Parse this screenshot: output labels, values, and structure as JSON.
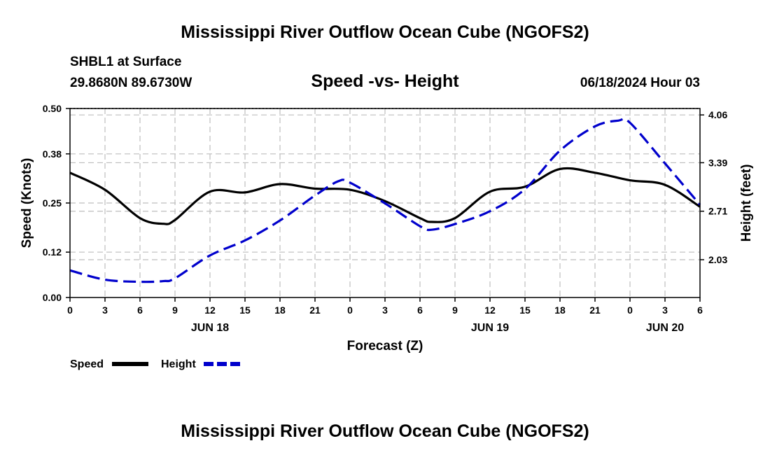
{
  "page": {
    "title": "Mississippi River Outflow Ocean Cube (NGOFS2)",
    "footer_title": "Mississippi River Outflow Ocean Cube (NGOFS2)"
  },
  "chart_data": {
    "type": "line",
    "title": "Speed -vs- Height",
    "station": "SHBL1 at Surface",
    "location": "29.8680N  89.6730W",
    "datetime": "06/18/2024 Hour 03",
    "xlabel": "Forecast (Z)",
    "ylabel": "Speed (Knots)",
    "y2label": "Height (feet)",
    "x_range": [
      0,
      54
    ],
    "x_ticks": [
      0,
      3,
      6,
      9,
      12,
      15,
      18,
      21,
      24,
      27,
      30,
      33,
      36,
      39,
      42,
      45,
      48,
      51,
      54
    ],
    "x_tick_labels": [
      "0",
      "3",
      "6",
      "9",
      "12",
      "15",
      "18",
      "21",
      "0",
      "3",
      "6",
      "9",
      "12",
      "15",
      "18",
      "21",
      "0",
      "3",
      "6"
    ],
    "date_labels": [
      {
        "x": 12,
        "label": "JUN 18"
      },
      {
        "x": 36,
        "label": "JUN 19"
      },
      {
        "x": 51,
        "label": "JUN 20"
      }
    ],
    "ylim": [
      0,
      0.5
    ],
    "y_ticks": [
      0.0,
      0.12,
      0.25,
      0.38,
      0.5
    ],
    "y_tick_labels": [
      "0.00",
      "0.12",
      "0.25",
      "0.38",
      "0.50"
    ],
    "y2lim": [
      1.5,
      4.15
    ],
    "y2_ticks": [
      2.03,
      2.71,
      3.39,
      4.06
    ],
    "y2_tick_labels": [
      "2.03",
      "2.71",
      "3.39",
      "4.06"
    ],
    "grid": true,
    "series": [
      {
        "name": "Speed",
        "axis": "left",
        "color": "#000000",
        "dash": "solid",
        "x": [
          0,
          3,
          6,
          8,
          9,
          12,
          15,
          18,
          21,
          24,
          27,
          30,
          31,
          33,
          36,
          39,
          42,
          45,
          48,
          51,
          54
        ],
        "values": [
          0.33,
          0.285,
          0.21,
          0.195,
          0.205,
          0.28,
          0.278,
          0.3,
          0.288,
          0.285,
          0.255,
          0.21,
          0.2,
          0.21,
          0.28,
          0.293,
          0.34,
          0.33,
          0.31,
          0.298,
          0.24
        ]
      },
      {
        "name": "Height",
        "axis": "right",
        "color": "#0000cc",
        "dash": "dashed",
        "x": [
          0,
          3,
          6,
          8,
          9,
          12,
          15,
          18,
          21,
          23,
          24,
          27,
          30,
          31,
          33,
          36,
          39,
          42,
          45,
          47,
          48,
          51,
          54
        ],
        "values": [
          1.88,
          1.75,
          1.72,
          1.73,
          1.77,
          2.09,
          2.3,
          2.58,
          2.93,
          3.13,
          3.11,
          2.82,
          2.5,
          2.45,
          2.53,
          2.71,
          3.02,
          3.56,
          3.9,
          3.98,
          3.95,
          3.38,
          2.8
        ]
      }
    ]
  },
  "legend": {
    "items": [
      {
        "label": "Speed",
        "color": "#000000",
        "dash": "solid"
      },
      {
        "label": "Height",
        "color": "#0000cc",
        "dash": "dashed"
      }
    ]
  }
}
